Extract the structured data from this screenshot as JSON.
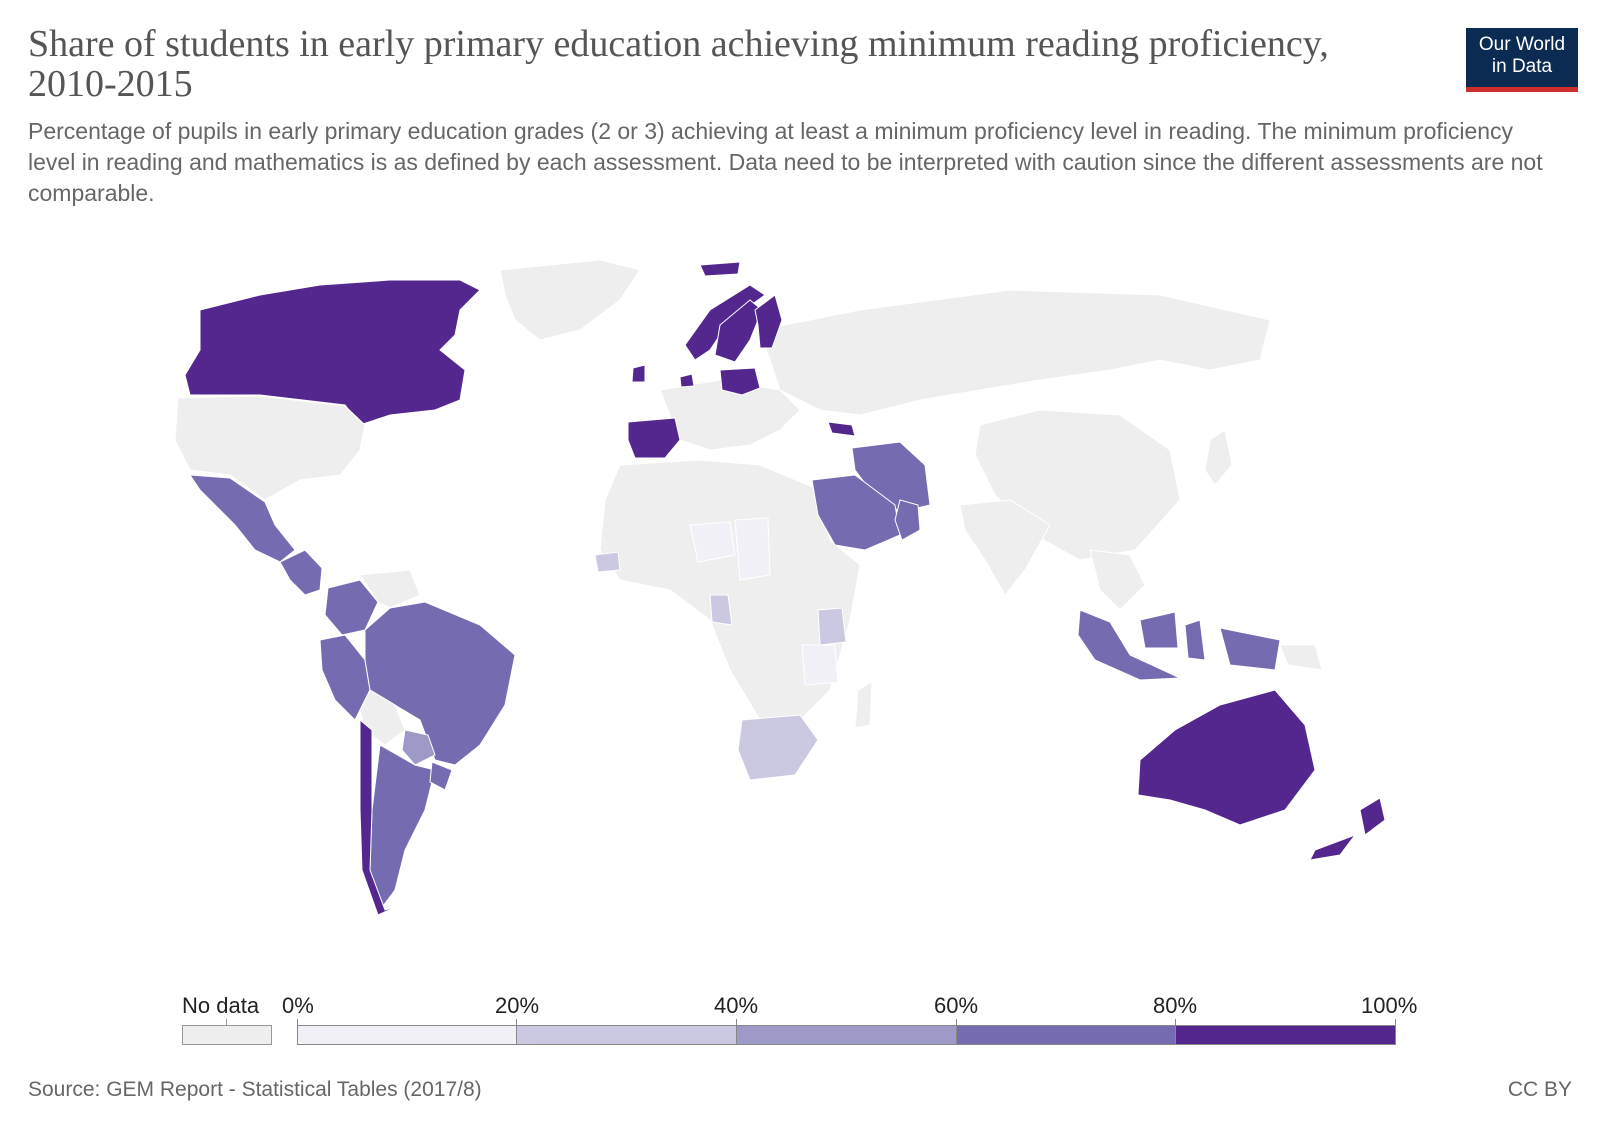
{
  "title": "Share of students in early primary education achieving minimum reading proficiency, 2010-2015",
  "subtitle": "Percentage of pupils in early primary education grades (2 or 3) achieving at least a minimum proficiency level in reading. The minimum proficiency level in reading and mathematics is as defined by each assessment. Data need to be interpreted with caution since the different assessments are not comparable.",
  "logo": {
    "line1": "Our World",
    "line2": "in Data",
    "bg_color": "#0c2b52",
    "accent_color": "#cf2d2d"
  },
  "legend": {
    "no_data_label": "No data",
    "no_data_color": "#eeeeee",
    "bins": [
      {
        "from_label": "0%",
        "to_label": "20%",
        "color": "#f2f0f7"
      },
      {
        "from_label": "20%",
        "to_label": "40%",
        "color": "#cbc9e2"
      },
      {
        "from_label": "40%",
        "to_label": "60%",
        "color": "#9e9ac8"
      },
      {
        "from_label": "60%",
        "to_label": "80%",
        "color": "#756bb1"
      },
      {
        "from_label": "80%",
        "to_label": "100%",
        "color": "#54278f"
      }
    ]
  },
  "footer": {
    "source": "Source: GEM Report - Statistical Tables (2017/8)",
    "license": "CC BY"
  },
  "map_regions": [
    {
      "name": "Canada",
      "bin": 4
    },
    {
      "name": "Greenland",
      "bin": -1
    },
    {
      "name": "United States",
      "bin": -1
    },
    {
      "name": "Mexico",
      "bin": 3
    },
    {
      "name": "Central America",
      "bin": 3
    },
    {
      "name": "Colombia",
      "bin": 3
    },
    {
      "name": "Venezuela",
      "bin": -1
    },
    {
      "name": "Peru",
      "bin": 3
    },
    {
      "name": "Brazil",
      "bin": 3
    },
    {
      "name": "Bolivia",
      "bin": -1
    },
    {
      "name": "Paraguay",
      "bin": 2
    },
    {
      "name": "Argentina",
      "bin": 3
    },
    {
      "name": "Uruguay",
      "bin": 3
    },
    {
      "name": "Chile",
      "bin": 4
    },
    {
      "name": "Spain",
      "bin": 4
    },
    {
      "name": "Ireland",
      "bin": 4
    },
    {
      "name": "Netherlands",
      "bin": 4
    },
    {
      "name": "Norway",
      "bin": 4
    },
    {
      "name": "Sweden",
      "bin": 4
    },
    {
      "name": "Finland",
      "bin": 4
    },
    {
      "name": "Poland",
      "bin": 4
    },
    {
      "name": "Georgia",
      "bin": 4
    },
    {
      "name": "Iran",
      "bin": 3
    },
    {
      "name": "Saudi Arabia",
      "bin": 3
    },
    {
      "name": "Oman",
      "bin": 3
    },
    {
      "name": "Senegal",
      "bin": 1
    },
    {
      "name": "Niger",
      "bin": 0
    },
    {
      "name": "Chad",
      "bin": 0
    },
    {
      "name": "Cameroon",
      "bin": 1
    },
    {
      "name": "Kenya",
      "bin": 1
    },
    {
      "name": "Tanzania",
      "bin": 0
    },
    {
      "name": "South Africa",
      "bin": 1
    },
    {
      "name": "Indonesia",
      "bin": 3
    },
    {
      "name": "Australia",
      "bin": 4
    },
    {
      "name": "New Zealand",
      "bin": 4
    },
    {
      "name": "Iceland",
      "bin": 4
    }
  ]
}
